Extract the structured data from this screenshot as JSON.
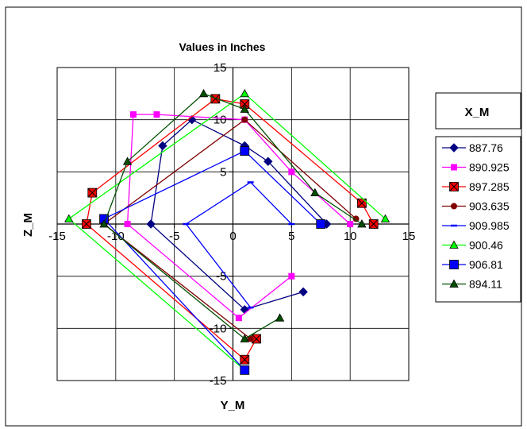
{
  "chart_data": {
    "type": "scatter",
    "title": "Values in Inches",
    "xlabel": "Y_M",
    "ylabel": "Z_M",
    "xlim": [
      -15,
      15
    ],
    "ylim": [
      -15,
      15
    ],
    "xticks": [
      -15,
      -10,
      -5,
      0,
      5,
      10,
      15
    ],
    "yticks": [
      -15,
      -10,
      -5,
      0,
      5,
      10,
      15
    ],
    "grid": true,
    "legend": {
      "title": "X_M",
      "position": "right"
    },
    "series": [
      {
        "name": "887.76",
        "color": "#000080",
        "marker": "diamond",
        "points": [
          [
            8,
            0
          ],
          [
            3,
            6
          ],
          [
            1,
            7.5
          ],
          [
            -3.5,
            10
          ],
          [
            -6,
            7.5
          ],
          [
            -7,
            0
          ],
          [
            1,
            -8.2
          ],
          [
            6,
            -6.5
          ]
        ]
      },
      {
        "name": "890.925",
        "color": "#ff00ff",
        "marker": "square",
        "points": [
          [
            10,
            0
          ],
          [
            5,
            5
          ],
          [
            1,
            10
          ],
          [
            -6.5,
            10.5
          ],
          [
            -8.5,
            10.5
          ],
          [
            -9,
            0
          ],
          [
            0.5,
            -9
          ],
          [
            5,
            -5
          ]
        ]
      },
      {
        "name": "897.285",
        "color": "#ff0000",
        "marker": "xsquare",
        "points": [
          [
            12,
            0
          ],
          [
            11,
            2
          ],
          [
            1,
            11.5
          ],
          [
            -1.5,
            12
          ],
          [
            -12,
            3
          ],
          [
            -12.5,
            0
          ],
          [
            1,
            -13
          ],
          [
            2,
            -11
          ]
        ]
      },
      {
        "name": "903.635",
        "color": "#800000",
        "marker": "circle",
        "points": [
          [
            10.5,
            0.5
          ],
          [
            1,
            10
          ],
          [
            -11,
            0
          ],
          [
            1.5,
            -11
          ]
        ]
      },
      {
        "name": "909.985",
        "color": "#0000ff",
        "marker": "dash",
        "points": [
          [
            5,
            0
          ],
          [
            1.5,
            4
          ],
          [
            -4,
            0
          ],
          [
            1.5,
            -8
          ]
        ]
      },
      {
        "name": "900.46",
        "color": "#00ff00",
        "marker": "triangle",
        "points": [
          [
            13,
            0.5
          ],
          [
            1,
            12.5
          ],
          [
            -14,
            0.5
          ],
          [
            1,
            -14
          ]
        ]
      },
      {
        "name": "906.81",
        "color": "#0000ff",
        "marker": "bigsquare",
        "points": [
          [
            7.5,
            0
          ],
          [
            1,
            7
          ],
          [
            -11,
            0.5
          ],
          [
            1,
            -14
          ]
        ]
      },
      {
        "name": "894.11",
        "color": "#005000",
        "marker": "triangle",
        "points": [
          [
            11,
            0
          ],
          [
            7,
            3
          ],
          [
            1,
            11
          ],
          [
            -2.5,
            12.5
          ],
          [
            -9,
            6
          ],
          [
            -11,
            0
          ],
          [
            1,
            -11
          ],
          [
            4,
            -9
          ]
        ]
      }
    ]
  }
}
